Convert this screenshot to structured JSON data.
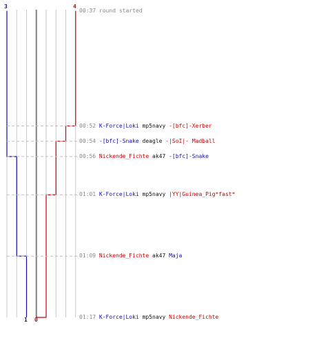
{
  "colors": {
    "team_blue": "#1010b0",
    "team_red": "#c80000",
    "timestamp": "#888888",
    "grid": "#c8c8c8",
    "grid_center": "#808080",
    "guide": "#c0c0c0"
  },
  "counters": {
    "blue_start": "3",
    "red_start": "4",
    "blue_end": "1",
    "red_end": "0"
  },
  "events": [
    {
      "time": "00:37",
      "text": "round started"
    },
    {
      "time": "00:52",
      "killer": "K-Force|Loki",
      "killer_team": "blue",
      "weapon": "mp5navy",
      "victim": "-[bfc]-Xerber",
      "victim_team": "red",
      "blue_alive": 3,
      "red_alive": 3
    },
    {
      "time": "00:54",
      "killer": "-[bfc]-Snake",
      "killer_team": "blue",
      "weapon": "deagle",
      "victim": "-|SoI|- Madball",
      "victim_team": "red",
      "blue_alive": 3,
      "red_alive": 2
    },
    {
      "time": "00:56",
      "killer": "Nickende_Fichte",
      "killer_team": "red",
      "weapon": "ak47",
      "victim": "-[bfc]-Snake",
      "victim_team": "blue",
      "blue_alive": 2,
      "red_alive": 2
    },
    {
      "time": "01:01",
      "killer": "K-Force|Loki",
      "killer_team": "blue",
      "weapon": "mp5navy",
      "victim": "|YY|Guinea_Pig*fast*",
      "victim_team": "red",
      "blue_alive": 2,
      "red_alive": 1
    },
    {
      "time": "01:09",
      "killer": "Nickende_Fichte",
      "killer_team": "red",
      "weapon": "ak47",
      "victim": "Maja",
      "victim_team": "blue",
      "blue_alive": 1,
      "red_alive": 1
    },
    {
      "time": "01:17",
      "killer": "K-Force|Loki",
      "killer_team": "blue",
      "weapon": "mp5navy",
      "victim": "Nickende_Fichte",
      "victim_team": "red",
      "blue_alive": 1,
      "red_alive": 0
    }
  ]
}
